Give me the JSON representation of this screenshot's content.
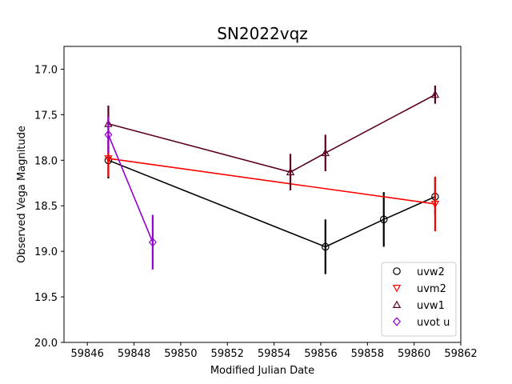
{
  "chart_data": {
    "type": "scatter",
    "title": "SN2022vqz",
    "xlabel": "Modified Julian Date",
    "ylabel": "Observed Vega Magnitude",
    "xlim": [
      59845,
      59862
    ],
    "ylim": [
      20.0,
      16.75
    ],
    "y_inverted": true,
    "xticks": [
      59846,
      59848,
      59850,
      59852,
      59854,
      59856,
      59858,
      59860,
      59862
    ],
    "yticks": [
      17.0,
      17.5,
      18.0,
      18.5,
      19.0,
      19.5,
      20.0
    ],
    "xtick_labels": [
      "59846",
      "59848",
      "59850",
      "59852",
      "59854",
      "59856",
      "59858",
      "59860",
      "59862"
    ],
    "ytick_labels": [
      "17.0",
      "17.5",
      "18.0",
      "18.5",
      "19.0",
      "19.5",
      "20.0"
    ],
    "grid": false,
    "legend_position": "lower-right",
    "series": [
      {
        "name": "uvw2",
        "color": "#000000",
        "marker": "circle",
        "points": [
          {
            "x": 59846.9,
            "y": 18.0,
            "err": 0.2
          },
          {
            "x": 59856.2,
            "y": 18.95,
            "err": 0.3
          },
          {
            "x": 59858.7,
            "y": 18.65,
            "err": 0.3
          },
          {
            "x": 59860.9,
            "y": 18.4,
            "err": 0.2
          }
        ]
      },
      {
        "name": "uvm2",
        "color": "#ff0000",
        "marker": "triangle-down",
        "points": [
          {
            "x": 59846.9,
            "y": 17.98,
            "err": 0.2
          },
          {
            "x": 59860.9,
            "y": 18.48,
            "err": 0.3
          }
        ]
      },
      {
        "name": "uvw1",
        "color": "#5a0020",
        "marker": "triangle-up",
        "points": [
          {
            "x": 59846.9,
            "y": 17.6,
            "err": 0.2
          },
          {
            "x": 59854.7,
            "y": 18.13,
            "err": 0.2
          },
          {
            "x": 59856.2,
            "y": 17.92,
            "err": 0.2
          },
          {
            "x": 59860.9,
            "y": 17.28,
            "err": 0.1
          }
        ]
      },
      {
        "name": "uvot u",
        "color": "#9400d3",
        "marker": "diamond",
        "points": [
          {
            "x": 59846.9,
            "y": 17.72,
            "err": 0.2
          },
          {
            "x": 59848.8,
            "y": 18.9,
            "err": 0.3
          }
        ]
      }
    ]
  }
}
